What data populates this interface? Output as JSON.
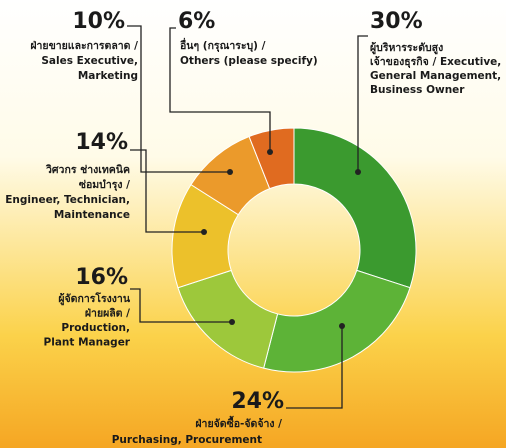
{
  "chart_data": {
    "type": "donut",
    "categories": [
      [
        "ผู้บริหารระดับสูง",
        "เจ้าของธุรกิจ / Executive,",
        "General Management,",
        "Business Owner"
      ],
      [
        "ฝ่ายจัดซื้อ-จัดจ้าง /",
        "Purchasing, Procurement"
      ],
      [
        "ผู้จัดการโรงงาน",
        "ฝ่ายผลิต /",
        "Production,",
        "Plant Manager"
      ],
      [
        "วิศวกร ช่างเทคนิค",
        "ซ่อมบำรุง /",
        "Engineer, Technician,",
        "Maintenance"
      ],
      [
        "ฝ่ายขายและการตลาด /",
        "Sales Executive,",
        "Marketing"
      ],
      [
        "อื่นๆ (กรุณาระบุ) /",
        "Others (please specify)"
      ]
    ],
    "values": [
      30,
      24,
      16,
      14,
      10,
      6
    ],
    "value_labels": [
      "30%",
      "24%",
      "16%",
      "14%",
      "10%",
      "6%"
    ],
    "colors": [
      "#3b9a2f",
      "#5db337",
      "#9dc83b",
      "#ecc12b",
      "#eb9a2b",
      "#e06b20"
    ]
  }
}
